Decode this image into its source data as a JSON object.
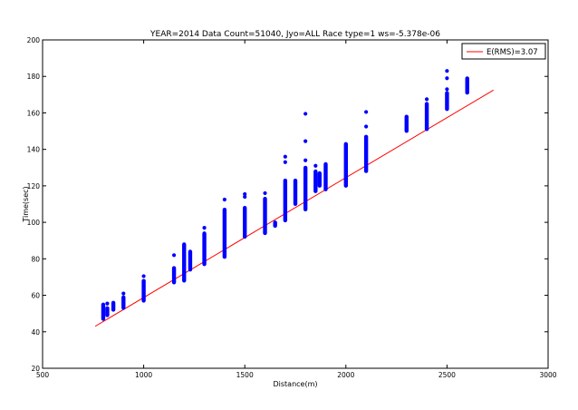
{
  "chart_data": {
    "type": "scatter",
    "title": "YEAR=2014 Data Count=51040, Jyo=ALL Race type=1 ws=-5.378e-06",
    "xlabel": "Distance(m)",
    "ylabel": "Time(sec)",
    "xlim": [
      500,
      3000
    ],
    "ylim": [
      20,
      200
    ],
    "xticks": [
      "500",
      "1000",
      "1500",
      "2000",
      "2500",
      "3000"
    ],
    "yticks": [
      "20",
      "40",
      "60",
      "80",
      "100",
      "120",
      "140",
      "160",
      "180",
      "200"
    ],
    "grid": false,
    "legend": {
      "placement": "top-right",
      "entries": [
        {
          "label": "E(RMS)=3.07",
          "color": "#ff0000"
        }
      ]
    },
    "fit_line": {
      "color": "#ff0000",
      "x": [
        760,
        2730
      ],
      "y": [
        43,
        172.5
      ]
    },
    "scatter_color": "#0000ff",
    "scatter_groups": [
      {
        "x": 800,
        "y_min": 47,
        "y_max": 55,
        "outliers": []
      },
      {
        "x": 820,
        "y_min": 49,
        "y_max": 53,
        "outliers": [
          55.5
        ]
      },
      {
        "x": 850,
        "y_min": 52,
        "y_max": 56,
        "outliers": []
      },
      {
        "x": 900,
        "y_min": 53,
        "y_max": 59,
        "outliers": [
          61
        ]
      },
      {
        "x": 1000,
        "y_min": 57,
        "y_max": 68,
        "outliers": [
          70.5
        ]
      },
      {
        "x": 1150,
        "y_min": 67,
        "y_max": 75,
        "outliers": [
          82
        ]
      },
      {
        "x": 1200,
        "y_min": 68,
        "y_max": 88,
        "outliers": []
      },
      {
        "x": 1230,
        "y_min": 74,
        "y_max": 84,
        "outliers": []
      },
      {
        "x": 1300,
        "y_min": 77,
        "y_max": 94,
        "outliers": [
          97
        ]
      },
      {
        "x": 1400,
        "y_min": 81,
        "y_max": 107,
        "outliers": [
          112.5
        ]
      },
      {
        "x": 1500,
        "y_min": 92,
        "y_max": 108,
        "outliers": [
          114,
          115.5
        ]
      },
      {
        "x": 1600,
        "y_min": 94,
        "y_max": 113,
        "outliers": [
          116
        ]
      },
      {
        "x": 1650,
        "y_min": 98,
        "y_max": 100,
        "outliers": []
      },
      {
        "x": 1700,
        "y_min": 101,
        "y_max": 123,
        "outliers": [
          133,
          136
        ]
      },
      {
        "x": 1750,
        "y_min": 110,
        "y_max": 123,
        "outliers": []
      },
      {
        "x": 1800,
        "y_min": 107,
        "y_max": 130,
        "outliers": [
          134,
          144.5,
          159.5
        ]
      },
      {
        "x": 1850,
        "y_min": 117,
        "y_max": 128,
        "outliers": [
          131
        ]
      },
      {
        "x": 1870,
        "y_min": 120,
        "y_max": 127,
        "outliers": []
      },
      {
        "x": 1900,
        "y_min": 118,
        "y_max": 132,
        "outliers": []
      },
      {
        "x": 2000,
        "y_min": 120,
        "y_max": 143,
        "outliers": []
      },
      {
        "x": 2100,
        "y_min": 128,
        "y_max": 147,
        "outliers": [
          152.5,
          160.5
        ]
      },
      {
        "x": 2300,
        "y_min": 150,
        "y_max": 158,
        "outliers": []
      },
      {
        "x": 2400,
        "y_min": 151,
        "y_max": 165,
        "outliers": [
          167.5
        ]
      },
      {
        "x": 2500,
        "y_min": 162,
        "y_max": 171,
        "outliers": [
          173,
          179,
          183
        ]
      },
      {
        "x": 2600,
        "y_min": 171,
        "y_max": 179,
        "outliers": []
      }
    ]
  }
}
